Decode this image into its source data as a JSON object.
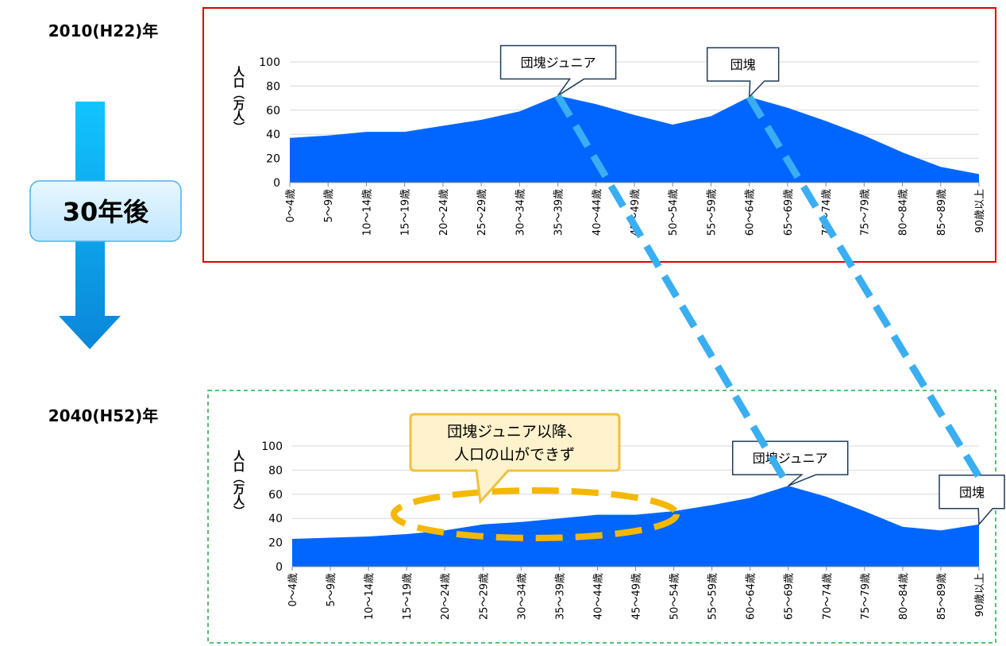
{
  "arrow_label": "30年後",
  "chart_data": [
    {
      "type": "area",
      "period": "2010(H22)年",
      "y_label": "人口（万人）",
      "color": "#0066ff",
      "categories": [
        "0～4歳",
        "5～9歳",
        "10～14歳",
        "15～19歳",
        "20～24歳",
        "25～29歳",
        "30～34歳",
        "35～39歳",
        "40～44歳",
        "45～49歳",
        "50～54歳",
        "55～59歳",
        "60～64歳",
        "65～69歳",
        "70～74歳",
        "75～79歳",
        "80～84歳",
        "85～89歳",
        "90歳以上"
      ],
      "values": [
        37,
        39,
        42,
        42,
        47,
        52,
        59,
        72,
        65,
        56,
        48,
        55,
        71,
        62,
        51,
        39,
        25,
        13,
        7
      ],
      "ylim": [
        0,
        100
      ],
      "yticks": [
        0,
        20,
        40,
        60,
        80,
        100
      ],
      "grid": true,
      "annotations": [
        {
          "text": "団塊ジュニア",
          "at": "35～39歳"
        },
        {
          "text": "団塊",
          "at": "60～64歳"
        }
      ]
    },
    {
      "type": "area",
      "period": "2040(H52)年",
      "y_label": "人口（万人）",
      "color": "#0066ff",
      "categories": [
        "0～4歳",
        "5～9歳",
        "10～14歳",
        "15～19歳",
        "20～24歳",
        "25～29歳",
        "30～34歳",
        "35～39歳",
        "40～44歳",
        "45～49歳",
        "50～54歳",
        "55～59歳",
        "60～64歳",
        "65～69歳",
        "70～74歳",
        "75～79歳",
        "80～84歳",
        "85～89歳",
        "90歳以上"
      ],
      "values": [
        23,
        24,
        25,
        27,
        30,
        35,
        37,
        40,
        43,
        43,
        46,
        51,
        57,
        67,
        58,
        46,
        33,
        30,
        35
      ],
      "ylim": [
        0,
        100
      ],
      "yticks": [
        0,
        20,
        40,
        60,
        80,
        100
      ],
      "grid": true,
      "annotations": [
        {
          "text": "団塊ジュニア",
          "at": "65～69歳"
        },
        {
          "text": "団塊",
          "at": "90歳以上"
        }
      ],
      "callout": [
        "団塊ジュニア以降、",
        "人口の山ができず"
      ]
    }
  ]
}
